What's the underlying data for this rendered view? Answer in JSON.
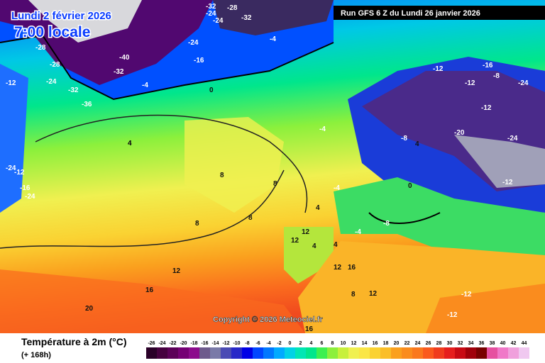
{
  "header": {
    "date": "Lundi 2 février 2026",
    "time": "7:00 locale",
    "run": "Run GFS 6 Z du Lundi 26 janvier 2026"
  },
  "copyright": "Copyright © 2026 Meteociel.fr",
  "legend": {
    "title": "Température à 2m (°C)",
    "subtitle": "(+ 168h)",
    "ticks": [
      -26,
      -24,
      -22,
      -20,
      -18,
      -16,
      -14,
      -12,
      -10,
      -8,
      -6,
      -4,
      -2,
      0,
      2,
      4,
      6,
      8,
      10,
      12,
      14,
      16,
      18,
      20,
      22,
      24,
      26,
      28,
      30,
      32,
      34,
      36,
      38,
      40,
      42,
      44
    ],
    "colors": [
      "#2a0028",
      "#46003f",
      "#5c0058",
      "#750074",
      "#8c0b8c",
      "#6e5a8c",
      "#7a7aa8",
      "#4b4bb4",
      "#2828c8",
      "#0000e6",
      "#0046ff",
      "#0078ff",
      "#00aaff",
      "#00d2e6",
      "#00e6b4",
      "#00e68c",
      "#3cf050",
      "#8cf03c",
      "#c8f03c",
      "#f0f050",
      "#fae646",
      "#fad232",
      "#fabe28",
      "#faa01e",
      "#fa8c1e",
      "#fa781e",
      "#fa5a1e",
      "#f03c1e",
      "#e61e1e",
      "#c80a14",
      "#a0000a",
      "#780000",
      "#e650a0",
      "#f078c8",
      "#f0a0dc",
      "#f0c8f0"
    ]
  },
  "contour_labels": [
    -32,
    -24,
    -28,
    -24,
    -32,
    -4,
    -24,
    -16,
    -40,
    -32,
    -12,
    -24,
    -32,
    -36,
    -4,
    0,
    4,
    -4,
    -12,
    -16,
    -24,
    -28,
    -28,
    -24,
    -12,
    -8,
    -12,
    -16,
    -12,
    -24,
    -20,
    -24,
    -12,
    -8,
    4,
    8,
    8,
    8,
    8,
    12,
    12,
    16,
    20,
    4,
    0,
    4,
    12,
    12,
    16,
    12,
    8,
    4,
    4,
    16,
    -12,
    -12,
    -4,
    -4,
    -8
  ]
}
